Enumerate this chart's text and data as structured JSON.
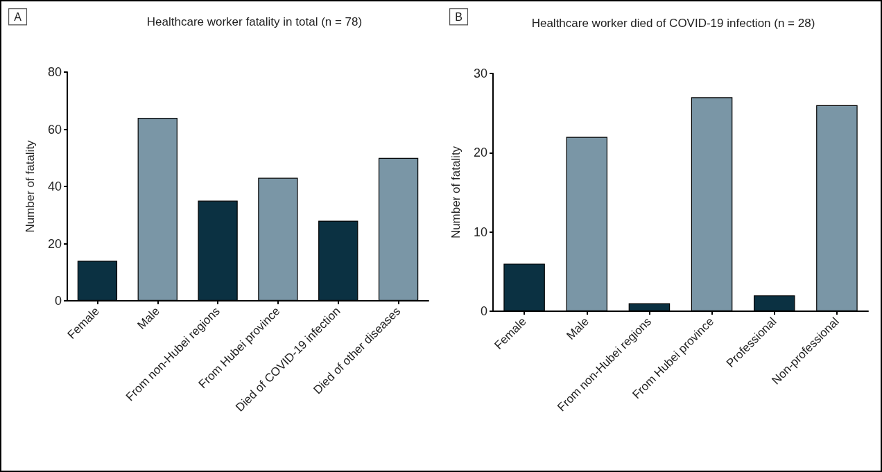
{
  "chart_data": [
    {
      "type": "bar",
      "title": "Healthcare worker fatality in total (n = 78)",
      "annotations": [
        "A"
      ],
      "ylabel": "Number of fatality",
      "categories": [
        "Female",
        "Male",
        "From non-Hubei regions",
        "From Hubei province",
        "Died of COVID-19 infection",
        "Died of other diseases"
      ],
      "values": [
        14,
        64,
        35,
        43,
        28,
        50
      ],
      "colors": [
        "#0b3142",
        "#7a96a6",
        "#0b3142",
        "#7a96a6",
        "#0b3142",
        "#7a96a6"
      ],
      "ylim": [
        0,
        80
      ],
      "yticks": [
        0,
        20,
        40,
        60,
        80
      ]
    },
    {
      "type": "bar",
      "title": "Healthcare worker died of COVID-19 infection (n = 28)",
      "annotations": [
        "B"
      ],
      "ylabel": "Number of fatality",
      "categories": [
        "Female",
        "Male",
        "From non-Hubei regions",
        "From Hubei province",
        "Professional",
        "Non-professional"
      ],
      "values": [
        6,
        22,
        1,
        27,
        2,
        26
      ],
      "colors": [
        "#0b3142",
        "#7a96a6",
        "#0b3142",
        "#7a96a6",
        "#0b3142",
        "#7a96a6"
      ],
      "ylim": [
        0,
        30
      ],
      "yticks": [
        0,
        10,
        20,
        30
      ]
    }
  ]
}
